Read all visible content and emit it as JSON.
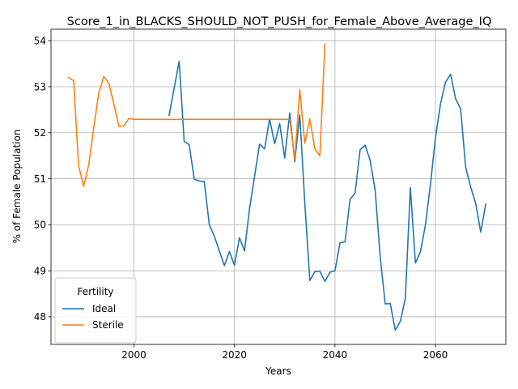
{
  "chart_data": {
    "type": "line",
    "title": "Score_1_in_BLACKS_SHOULD_NOT_PUSH_for_Female_Above_Average_IQ",
    "xlabel": "Years",
    "ylabel": "% of Female Population",
    "xlim": [
      1983.5,
      2074
    ],
    "ylim": [
      47.4,
      54.25
    ],
    "xticks": [
      2000,
      2020,
      2040,
      2060
    ],
    "yticks": [
      48,
      49,
      50,
      51,
      52,
      53,
      54
    ],
    "grid": true,
    "legend": {
      "title": "Fertility",
      "position": "lower-left"
    },
    "series": [
      {
        "name": "Ideal",
        "color": "#1f77b4",
        "points": [
          [
            2007,
            52.38
          ],
          [
            2009,
            53.55
          ],
          [
            2010,
            51.81
          ],
          [
            2011,
            51.74
          ],
          [
            2012,
            50.99
          ],
          [
            2013,
            50.95
          ],
          [
            2014,
            50.94
          ],
          [
            2015,
            50.0
          ],
          [
            2016,
            49.75
          ],
          [
            2017,
            49.43
          ],
          [
            2018,
            49.11
          ],
          [
            2019,
            49.42
          ],
          [
            2020,
            49.12
          ],
          [
            2021,
            49.72
          ],
          [
            2022,
            49.43
          ],
          [
            2023,
            50.35
          ],
          [
            2025,
            51.75
          ],
          [
            2026,
            51.65
          ],
          [
            2027,
            52.3
          ],
          [
            2028,
            51.76
          ],
          [
            2029,
            52.2
          ],
          [
            2030,
            51.45
          ],
          [
            2031,
            52.43
          ],
          [
            2032,
            51.37
          ],
          [
            2033,
            52.39
          ],
          [
            2034,
            50.47
          ],
          [
            2035,
            48.79
          ],
          [
            2036,
            48.98
          ],
          [
            2037,
            48.99
          ],
          [
            2038,
            48.77
          ],
          [
            2039,
            48.97
          ],
          [
            2040,
            49.0
          ],
          [
            2041,
            49.61
          ],
          [
            2042,
            49.63
          ],
          [
            2043,
            50.55
          ],
          [
            2044,
            50.69
          ],
          [
            2045,
            51.63
          ],
          [
            2046,
            51.73
          ],
          [
            2047,
            51.4
          ],
          [
            2048,
            50.75
          ],
          [
            2049,
            49.3
          ],
          [
            2050,
            48.28
          ],
          [
            2051,
            48.29
          ],
          [
            2052,
            47.71
          ],
          [
            2053,
            47.9
          ],
          [
            2054,
            48.4
          ],
          [
            2055,
            50.81
          ],
          [
            2056,
            49.17
          ],
          [
            2057,
            49.41
          ],
          [
            2058,
            50.0
          ],
          [
            2059,
            50.88
          ],
          [
            2060,
            51.9
          ],
          [
            2061,
            52.63
          ],
          [
            2062,
            53.1
          ],
          [
            2063,
            53.27
          ],
          [
            2064,
            52.74
          ],
          [
            2065,
            52.52
          ],
          [
            2066,
            51.25
          ],
          [
            2067,
            50.82
          ],
          [
            2068,
            50.46
          ],
          [
            2069,
            49.84
          ],
          [
            2070,
            50.45
          ]
        ]
      },
      {
        "name": "Sterile",
        "color": "#ff7f0e",
        "points": [
          [
            1987,
            53.2
          ],
          [
            1988,
            53.13
          ],
          [
            1989,
            51.28
          ],
          [
            1990,
            50.84
          ],
          [
            1991,
            51.3
          ],
          [
            1992,
            52.1
          ],
          [
            1993,
            52.86
          ],
          [
            1994,
            53.22
          ],
          [
            1995,
            53.08
          ],
          [
            1996,
            52.63
          ],
          [
            1997,
            52.14
          ],
          [
            1998,
            52.15
          ],
          [
            1999,
            52.31
          ],
          [
            2000,
            52.29
          ],
          [
            2031,
            52.29
          ],
          [
            2032,
            51.43
          ],
          [
            2033,
            52.93
          ],
          [
            2034,
            51.77
          ],
          [
            2035,
            52.3
          ],
          [
            2036,
            51.65
          ],
          [
            2037,
            51.5
          ],
          [
            2038,
            53.93
          ]
        ]
      }
    ]
  }
}
